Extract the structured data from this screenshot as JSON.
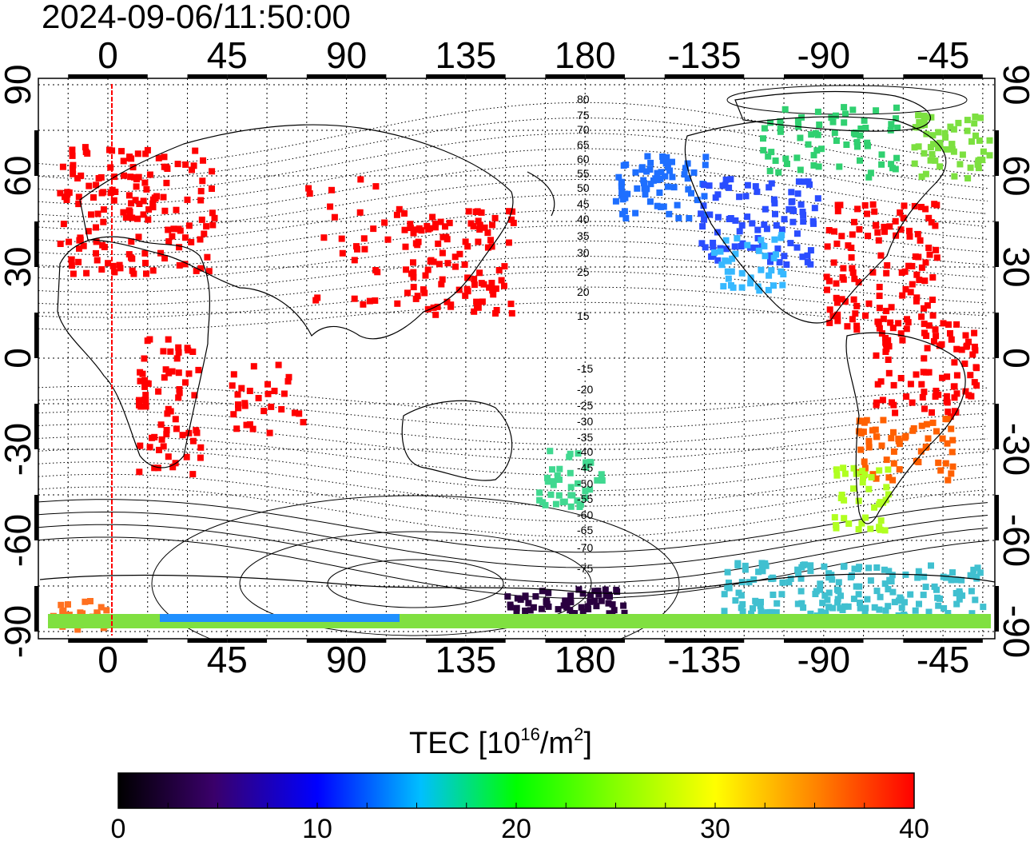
{
  "title": "2024-09-06/11:50:00",
  "top_longitude_ticks": [
    "0",
    "45",
    "90",
    "135",
    "180",
    "-135",
    "-90",
    "-45"
  ],
  "bottom_longitude_ticks": [
    "0",
    "45",
    "90",
    "135",
    "180",
    "-135",
    "-90",
    "-45"
  ],
  "left_latitude_ticks": [
    "90",
    "60",
    "30",
    "0",
    "-30",
    "-60",
    "-90"
  ],
  "right_latitude_ticks": [
    "90",
    "60",
    "30",
    "0",
    "-30",
    "-60",
    "-90"
  ],
  "magnetic_latitude_labels": [
    "80",
    "75",
    "70",
    "65",
    "60",
    "55",
    "50",
    "45",
    "40",
    "35",
    "30",
    "25",
    "20",
    "15",
    "-15",
    "-20",
    "-25",
    "-30",
    "-35",
    "-40",
    "-45",
    "-50",
    "-55",
    "-60",
    "-65",
    "-70",
    "-75"
  ],
  "colorbar": {
    "title_prefix": "TEC  [10",
    "title_exp1": "16",
    "title_mid": "/m",
    "title_exp2": "2",
    "title_suffix": "]",
    "tick_labels": [
      "0",
      "10",
      "20",
      "30",
      "40"
    ],
    "range": [
      0,
      40
    ]
  },
  "colors": {
    "low": "#000000",
    "mid_low": "#0000ff",
    "mid": "#00ffff",
    "mid_high": "#00ff00",
    "high_mid": "#ffff00",
    "high": "#ff0000",
    "terminator_line": "#ff0000"
  }
}
